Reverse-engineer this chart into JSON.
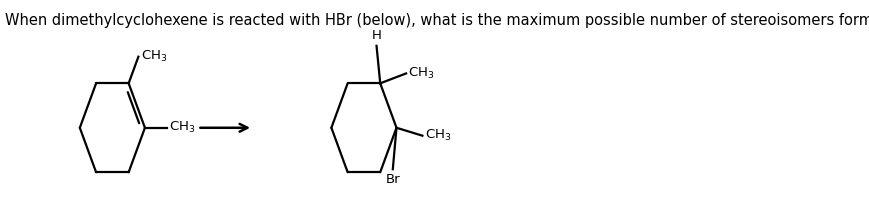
{
  "question_text": "When dimethylcyclohexene is reacted with HBr (below), what is the maximum possible number of stereoisomers formed?",
  "background_color": "#ffffff",
  "line_color": "#000000",
  "text_color": "#000000",
  "font_size_question": 10.5,
  "font_size_labels": 9.5,
  "font_size_labels_small": 8.5
}
